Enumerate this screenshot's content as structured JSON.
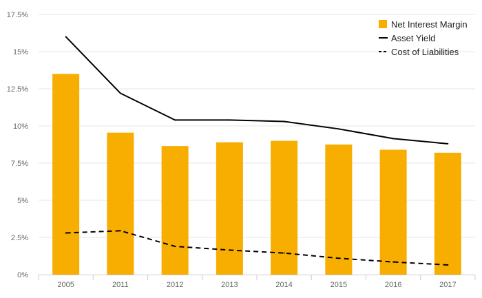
{
  "chart_data": {
    "type": "bar",
    "categories": [
      "2005",
      "2011",
      "2012",
      "2013",
      "2014",
      "2015",
      "2016",
      "2017"
    ],
    "series": [
      {
        "name": "Net Interest Margin",
        "kind": "bar",
        "color": "#f7ae00",
        "values": [
          13.5,
          9.55,
          8.65,
          8.9,
          9.0,
          8.75,
          8.4,
          8.2
        ]
      },
      {
        "name": "Asset Yield",
        "kind": "line",
        "color": "#000000",
        "dash": "solid",
        "values": [
          16.0,
          12.2,
          10.4,
          10.4,
          10.3,
          9.8,
          9.15,
          8.8
        ]
      },
      {
        "name": "Cost of Liabilities",
        "kind": "line",
        "color": "#000000",
        "dash": "dashed",
        "values": [
          2.8,
          2.95,
          1.9,
          1.65,
          1.45,
          1.1,
          0.85,
          0.65
        ]
      }
    ],
    "yticks": [
      "0%",
      "2.5%",
      "5%",
      "7.5%",
      "10%",
      "12.5%",
      "15%",
      "17.5%"
    ],
    "ylim": [
      0,
      17.5
    ],
    "grid": true,
    "legend": "top-right"
  }
}
